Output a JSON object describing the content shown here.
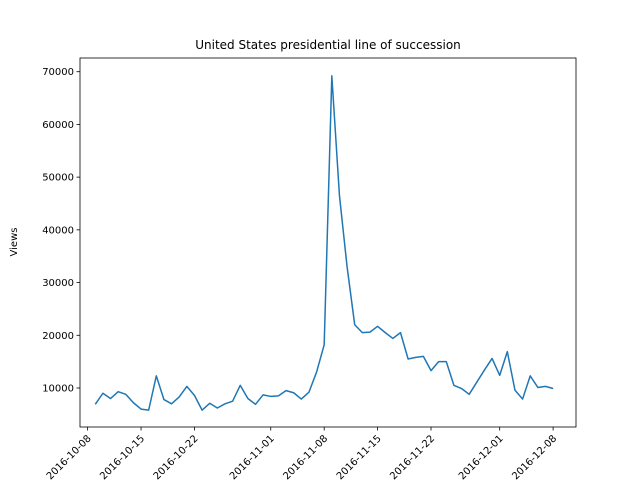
{
  "chart_data": {
    "type": "line",
    "title": "United States presidential line of succession",
    "xlabel": "",
    "ylabel": "Views",
    "grid": false,
    "ylim": [
      2600,
      72600
    ],
    "xlim": [
      "2016-10-07",
      "2016-12-11"
    ],
    "yticks": [
      10000,
      20000,
      30000,
      40000,
      50000,
      60000,
      70000
    ],
    "xticks": [
      {
        "date": "2016-10-08",
        "label": "2016-10-08"
      },
      {
        "date": "2016-10-15",
        "label": "2016-10-15"
      },
      {
        "date": "2016-10-22",
        "label": "2016-10-22"
      },
      {
        "date": "2016-11-01",
        "label": "2016-11-01"
      },
      {
        "date": "2016-11-08",
        "label": "2016-11-08"
      },
      {
        "date": "2016-11-15",
        "label": "2016-11-15"
      },
      {
        "date": "2016-11-22",
        "label": "2016-11-22"
      },
      {
        "date": "2016-12-01",
        "label": "2016-12-01"
      },
      {
        "date": "2016-12-08",
        "label": "2016-12-08"
      }
    ],
    "series": [
      {
        "color": "#1f77b4",
        "x": [
          "2016-10-09",
          "2016-10-10",
          "2016-10-11",
          "2016-10-12",
          "2016-10-13",
          "2016-10-14",
          "2016-10-15",
          "2016-10-16",
          "2016-10-17",
          "2016-10-18",
          "2016-10-19",
          "2016-10-20",
          "2016-10-21",
          "2016-10-22",
          "2016-10-23",
          "2016-10-24",
          "2016-10-25",
          "2016-10-26",
          "2016-10-27",
          "2016-10-28",
          "2016-10-29",
          "2016-10-30",
          "2016-10-31",
          "2016-11-01",
          "2016-11-02",
          "2016-11-03",
          "2016-11-04",
          "2016-11-05",
          "2016-11-06",
          "2016-11-07",
          "2016-11-08",
          "2016-11-09",
          "2016-11-10",
          "2016-11-11",
          "2016-11-12",
          "2016-11-13",
          "2016-11-14",
          "2016-11-15",
          "2016-11-16",
          "2016-11-17",
          "2016-11-18",
          "2016-11-19",
          "2016-11-20",
          "2016-11-21",
          "2016-11-22",
          "2016-11-23",
          "2016-11-24",
          "2016-11-25",
          "2016-11-26",
          "2016-11-27",
          "2016-11-28",
          "2016-11-29",
          "2016-11-30",
          "2016-12-01",
          "2016-12-02",
          "2016-12-03",
          "2016-12-04",
          "2016-12-05",
          "2016-12-06",
          "2016-12-07",
          "2016-12-08"
        ],
        "values": [
          6900,
          9000,
          8000,
          9300,
          8800,
          7200,
          6000,
          5800,
          12300,
          7800,
          7000,
          8300,
          10300,
          8600,
          5800,
          7100,
          6200,
          7000,
          7500,
          10500,
          8000,
          6900,
          8700,
          8400,
          8500,
          9500,
          9100,
          7900,
          9200,
          13000,
          18200,
          69200,
          46500,
          33000,
          22000,
          20500,
          20600,
          21700,
          20500,
          19400,
          20500,
          15500,
          15800,
          16000,
          13300,
          15000,
          15000,
          10500,
          9900,
          8800,
          11100,
          13400,
          15600,
          12400,
          16900,
          9600,
          7900,
          12300,
          10100,
          10300,
          9900
        ]
      }
    ]
  }
}
